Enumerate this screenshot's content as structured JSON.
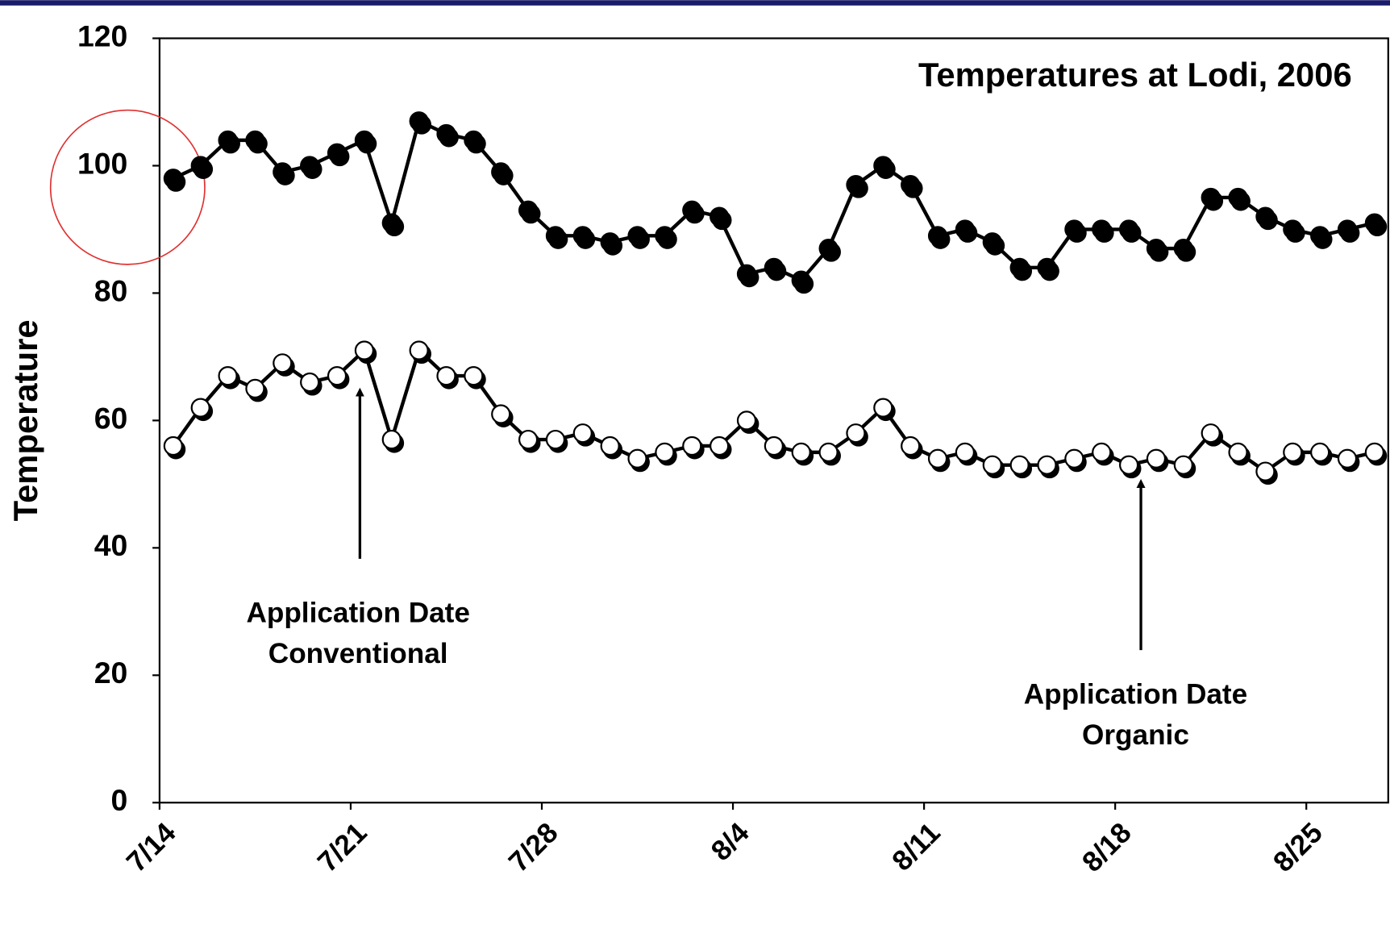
{
  "chart_data": {
    "type": "line",
    "title": "Temperatures at Lodi, 2006",
    "y_label": "Temperature",
    "categories": [
      "7/14",
      null,
      null,
      null,
      null,
      null,
      null,
      "7/21",
      null,
      null,
      null,
      null,
      null,
      null,
      "7/28",
      null,
      null,
      null,
      null,
      null,
      null,
      "8/4",
      null,
      null,
      null,
      null,
      null,
      null,
      "8/11",
      null,
      null,
      null,
      null,
      null,
      null,
      "8/18",
      null,
      null,
      null,
      null,
      null,
      null,
      "8/25",
      null,
      null
    ],
    "series": [
      {
        "color": "#000000",
        "marker": "filled",
        "values": [
          98,
          100,
          104,
          104,
          99,
          100,
          102,
          104,
          91,
          107,
          105,
          104,
          99,
          93,
          89,
          89,
          88,
          89,
          89,
          93,
          92,
          83,
          84,
          82,
          87,
          97,
          100,
          97,
          89,
          90,
          88,
          84,
          84,
          90,
          90,
          90,
          87,
          87,
          95,
          95,
          92,
          90,
          89,
          90,
          91
        ]
      },
      {
        "color": "#000000",
        "marker": "open",
        "values": [
          56,
          62,
          67,
          65,
          69,
          66,
          67,
          71,
          57,
          71,
          67,
          67,
          61,
          57,
          57,
          58,
          56,
          54,
          55,
          56,
          56,
          60,
          56,
          55,
          55,
          58,
          62,
          56,
          54,
          55,
          53,
          53,
          53,
          54,
          55,
          53,
          54,
          53,
          58,
          55,
          52,
          55,
          55,
          54,
          55
        ]
      }
    ],
    "ylim": [
      0,
      120
    ],
    "yticks": [
      0,
      20,
      40,
      60,
      80,
      100,
      120
    ],
    "grid": false,
    "annotations": [
      {
        "lines": [
          "Application Date",
          "Conventional"
        ]
      },
      {
        "lines": [
          "Application Date",
          "Organic"
        ]
      }
    ]
  }
}
